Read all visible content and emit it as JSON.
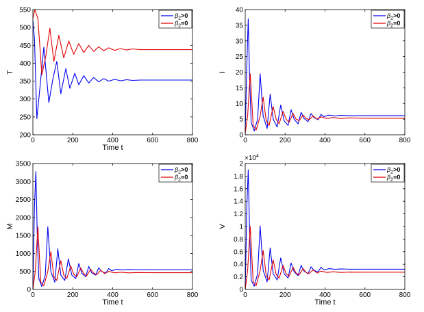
{
  "colors": {
    "beta_pos": "#0000ee",
    "beta_zero": "#e00000",
    "axis": "#000000"
  },
  "legend": {
    "placement": "top-right",
    "entries": [
      {
        "base": "β",
        "sub": "2",
        "rel": ">0",
        "color": "#0000ee"
      },
      {
        "base": "β",
        "sub": "2",
        "rel": "=0",
        "color": "#e00000"
      }
    ]
  },
  "chart_data": [
    {
      "type": "line",
      "xlabel": "Time t",
      "ylabel": "T",
      "xlim": [
        0,
        800
      ],
      "ylim": [
        200,
        550
      ],
      "xticks": [
        0,
        200,
        400,
        600,
        800
      ],
      "yticks": [
        200,
        250,
        300,
        350,
        400,
        450,
        500,
        550
      ],
      "ytick_labels": [
        "200",
        "250",
        "300",
        "350",
        "400",
        "450",
        "500",
        "550"
      ],
      "series": [
        {
          "color": "#0000ee",
          "x": [
            0,
            8,
            20,
            35,
            55,
            80,
            100,
            120,
            140,
            165,
            185,
            210,
            230,
            255,
            280,
            305,
            330,
            355,
            380,
            410,
            440,
            470,
            500,
            540,
            600,
            700,
            800
          ],
          "y": [
            520,
            470,
            245,
            330,
            445,
            290,
            355,
            405,
            315,
            385,
            330,
            372,
            340,
            365,
            345,
            360,
            348,
            357,
            350,
            355,
            351,
            354,
            352,
            353,
            353,
            353,
            353
          ]
        },
        {
          "color": "#e00000",
          "x": [
            0,
            10,
            25,
            45,
            65,
            85,
            105,
            130,
            155,
            180,
            205,
            230,
            255,
            280,
            305,
            330,
            355,
            380,
            410,
            440,
            470,
            500,
            540,
            600,
            700,
            800
          ],
          "y": [
            525,
            550,
            525,
            368,
            420,
            498,
            405,
            478,
            415,
            462,
            425,
            455,
            430,
            450,
            433,
            446,
            435,
            443,
            436,
            441,
            437,
            440,
            438,
            438,
            438,
            438
          ]
        }
      ]
    },
    {
      "type": "line",
      "xlabel": "",
      "ylabel": "I",
      "xlim": [
        0,
        800
      ],
      "ylim": [
        0,
        40
      ],
      "xticks": [
        0,
        200,
        400,
        600,
        800
      ],
      "yticks": [
        0,
        5,
        10,
        15,
        20,
        25,
        30,
        35,
        40
      ],
      "ytick_labels": [
        "0",
        "5",
        "10",
        "15",
        "20",
        "25",
        "30",
        "35",
        "40"
      ],
      "series": [
        {
          "color": "#0000ee",
          "x": [
            0,
            8,
            15,
            22,
            30,
            45,
            62,
            75,
            90,
            110,
            125,
            140,
            160,
            178,
            195,
            215,
            230,
            245,
            265,
            280,
            295,
            315,
            330,
            345,
            365,
            380,
            395,
            420,
            450,
            480,
            520,
            600,
            700,
            800
          ],
          "y": [
            1,
            22,
            37,
            18,
            4,
            1.2,
            5,
            19.5,
            6,
            2,
            13,
            5,
            2.5,
            9.5,
            4.5,
            3,
            8,
            5,
            3.5,
            7.2,
            5.2,
            4.2,
            6.8,
            5.5,
            4.8,
            6.5,
            5.8,
            6.3,
            6.0,
            6.2,
            6.1,
            6.1,
            6.1,
            6.1
          ]
        },
        {
          "color": "#e00000",
          "x": [
            0,
            12,
            25,
            32,
            40,
            55,
            75,
            90,
            105,
            120,
            140,
            155,
            170,
            190,
            205,
            220,
            240,
            255,
            270,
            290,
            305,
            320,
            340,
            360,
            380,
            410,
            440,
            480,
            520,
            600,
            700,
            800
          ],
          "y": [
            0.5,
            6,
            19.5,
            12,
            3,
            1.5,
            6,
            12,
            4.5,
            3,
            9,
            5,
            3.5,
            7.5,
            5,
            4,
            6.8,
            5,
            4.5,
            6.3,
            5.2,
            4.8,
            6.0,
            5.0,
            5.7,
            5.2,
            5.5,
            5.2,
            5.4,
            5.3,
            5.3,
            5.3
          ]
        }
      ]
    },
    {
      "type": "line",
      "xlabel": "Time t",
      "ylabel": "M",
      "xlim": [
        0,
        800
      ],
      "ylim": [
        0,
        3500
      ],
      "xticks": [
        0,
        200,
        400,
        600,
        800
      ],
      "yticks": [
        0,
        500,
        1000,
        1500,
        2000,
        2500,
        3000,
        3500
      ],
      "ytick_labels": [
        "0",
        "500",
        "1000",
        "1500",
        "2000",
        "2500",
        "3000",
        "3500"
      ],
      "series": [
        {
          "color": "#0000ee",
          "x": [
            0,
            8,
            15,
            22,
            30,
            45,
            62,
            75,
            90,
            110,
            125,
            140,
            160,
            178,
            195,
            215,
            230,
            245,
            265,
            280,
            295,
            315,
            330,
            345,
            365,
            380,
            395,
            420,
            450,
            480,
            520,
            600,
            700,
            800
          ],
          "y": [
            0,
            2300,
            3280,
            1500,
            300,
            80,
            400,
            1740,
            500,
            200,
            1130,
            400,
            250,
            850,
            400,
            300,
            720,
            450,
            350,
            640,
            460,
            400,
            600,
            500,
            450,
            580,
            520,
            560,
            540,
            550,
            545,
            545,
            545,
            545
          ]
        },
        {
          "color": "#e00000",
          "x": [
            0,
            12,
            25,
            32,
            40,
            55,
            75,
            90,
            105,
            120,
            140,
            155,
            170,
            190,
            205,
            220,
            240,
            255,
            270,
            290,
            305,
            320,
            340,
            360,
            380,
            410,
            440,
            480,
            520,
            600,
            700,
            800
          ],
          "y": [
            0,
            500,
            1740,
            1000,
            200,
            100,
            500,
            1050,
            350,
            250,
            800,
            400,
            300,
            650,
            420,
            350,
            600,
            430,
            380,
            560,
            450,
            410,
            530,
            440,
            500,
            460,
            480,
            460,
            470,
            465,
            465,
            465
          ]
        }
      ]
    },
    {
      "type": "line",
      "xlabel": "Time t",
      "ylabel": "V",
      "xlim": [
        0,
        800
      ],
      "ylim": [
        0,
        20000
      ],
      "xticks": [
        0,
        200,
        400,
        600,
        800
      ],
      "yticks": [
        0,
        2000,
        4000,
        6000,
        8000,
        10000,
        12000,
        14000,
        16000,
        18000,
        20000
      ],
      "ytick_labels": [
        "0",
        "0.2",
        "0.4",
        "0.6",
        "0.8",
        "1",
        "1.2",
        "1.4",
        "1.6",
        "1.8",
        "2"
      ],
      "multiplier": {
        "base": "×10",
        "exp": "4"
      },
      "series": [
        {
          "color": "#0000ee",
          "x": [
            0,
            8,
            15,
            22,
            30,
            45,
            62,
            75,
            90,
            110,
            125,
            140,
            160,
            178,
            195,
            215,
            230,
            245,
            265,
            280,
            295,
            315,
            330,
            345,
            365,
            380,
            395,
            420,
            450,
            480,
            520,
            600,
            700,
            800
          ],
          "y": [
            0,
            13000,
            19000,
            9000,
            1500,
            500,
            2500,
            10100,
            3000,
            1200,
            6600,
            2500,
            1500,
            5000,
            2500,
            1800,
            4200,
            2800,
            2200,
            3800,
            2900,
            2500,
            3600,
            3000,
            2800,
            3500,
            3100,
            3300,
            3200,
            3250,
            3220,
            3220,
            3220,
            3220
          ]
        },
        {
          "color": "#e00000",
          "x": [
            0,
            12,
            25,
            32,
            40,
            55,
            75,
            90,
            105,
            120,
            140,
            155,
            170,
            190,
            205,
            220,
            240,
            255,
            270,
            290,
            305,
            320,
            340,
            360,
            380,
            410,
            440,
            480,
            520,
            600,
            700,
            800
          ],
          "y": [
            0,
            3000,
            10000,
            6000,
            1200,
            600,
            3000,
            6200,
            2200,
            1500,
            4700,
            2400,
            1800,
            3800,
            2500,
            2100,
            3500,
            2600,
            2300,
            3300,
            2700,
            2500,
            3100,
            2600,
            2900,
            2700,
            2800,
            2700,
            2750,
            2740,
            2740,
            2740
          ]
        }
      ]
    }
  ]
}
